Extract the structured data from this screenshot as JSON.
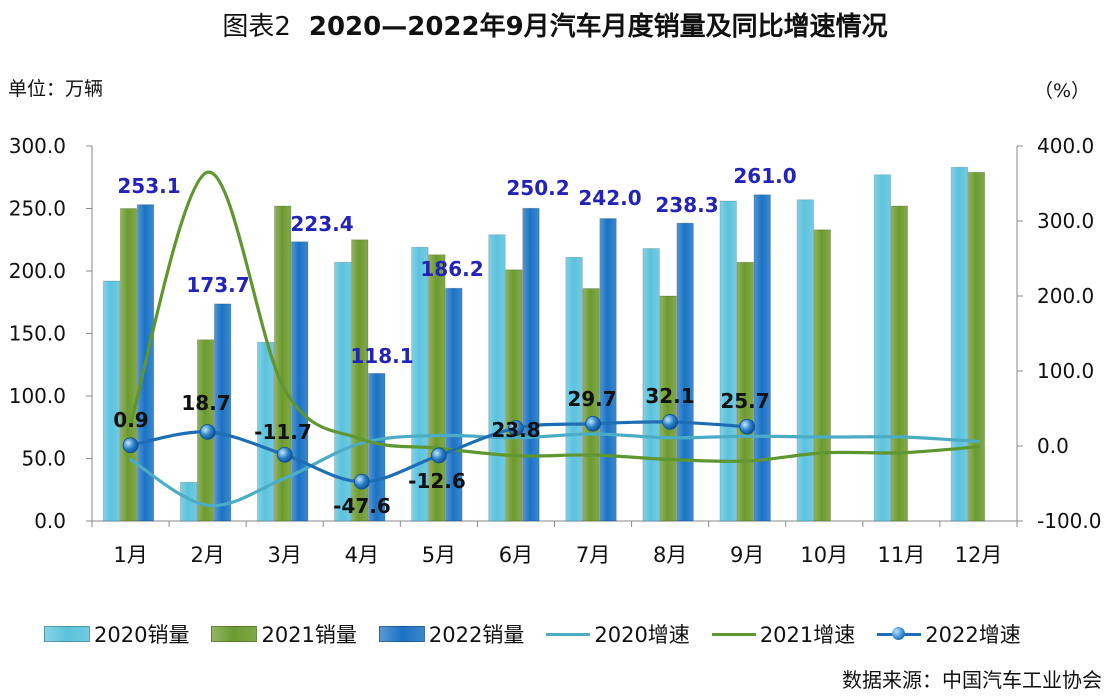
{
  "title_prefix": "图表2",
  "title_main": "2020—2022年9月汽车月度销量及同比增速情况",
  "left_axis_unit": "单位：万辆",
  "right_axis_unit": "（%）",
  "source": "数据来源：中国汽车工业协会",
  "colors": {
    "s2020_bar": "#5bc2dd",
    "s2021_bar": "#6c9a2e",
    "s2022_bar": "#1b73c4",
    "s2020_line": "#4bacc6",
    "s2021_line": "#5e9630",
    "s2022_line": "#1f6eb5",
    "label_2022": "#2323b8"
  },
  "legend": [
    {
      "label": "2020销量",
      "kind": "bar",
      "color": "#5bc2dd"
    },
    {
      "label": "2021销量",
      "kind": "bar",
      "color": "#6c9a2e"
    },
    {
      "label": "2022销量",
      "kind": "bar",
      "color": "#1b73c4"
    },
    {
      "label": "2020增速",
      "kind": "line",
      "color": "#4bacc6"
    },
    {
      "label": "2021增速",
      "kind": "line",
      "color": "#5e9630"
    },
    {
      "label": "2022增速",
      "kind": "line-dot",
      "color": "#1f6eb5"
    }
  ],
  "chart_data": {
    "type": "bar",
    "categories": [
      "1月",
      "2月",
      "3月",
      "4月",
      "5月",
      "6月",
      "7月",
      "8月",
      "9月",
      "10月",
      "11月",
      "12月"
    ],
    "y_left": {
      "min": 0,
      "max": 300,
      "ticks": [
        "0.0",
        "50.0",
        "100.0",
        "150.0",
        "200.0",
        "250.0",
        "300.0"
      ]
    },
    "y_right": {
      "min": -100,
      "max": 400,
      "ticks": [
        "-100.0",
        "0.0",
        "100.0",
        "200.0",
        "300.0",
        "400.0"
      ]
    },
    "bar_series": [
      {
        "name": "2020销量",
        "values": [
          192,
          31,
          143,
          207,
          219,
          229,
          211,
          218,
          256,
          257,
          277,
          283
        ]
      },
      {
        "name": "2021销量",
        "values": [
          250,
          145,
          252,
          225,
          213,
          201,
          186,
          180,
          207,
          233,
          252,
          279
        ]
      },
      {
        "name": "2022销量",
        "values": [
          253.1,
          173.7,
          223.4,
          118.1,
          186.2,
          250.2,
          242.0,
          238.3,
          261.0,
          null,
          null,
          null
        ]
      }
    ],
    "bar_labels_2022": [
      "253.1",
      "173.7",
      "223.4",
      "118.1",
      "186.2",
      "250.2",
      "242.0",
      "238.3",
      "261.0"
    ],
    "line_series": [
      {
        "name": "2020增速",
        "axis": "right",
        "values": [
          -18,
          -79,
          -43,
          4,
          14,
          11,
          16,
          11,
          13,
          12,
          12,
          6
        ]
      },
      {
        "name": "2021增速",
        "axis": "right",
        "values": [
          30,
          365,
          75,
          9,
          -3,
          -13,
          -12,
          -18,
          -20,
          -9,
          -9,
          -1
        ]
      },
      {
        "name": "2022增速",
        "axis": "right",
        "values": [
          0.9,
          18.7,
          -11.7,
          -47.6,
          -12.6,
          23.8,
          29.7,
          32.1,
          25.7,
          null,
          null,
          null
        ]
      }
    ],
    "line_labels_2022": [
      "0.9",
      "18.7",
      "-11.7",
      "-47.6",
      "-12.6",
      "23.8",
      "29.7",
      "32.1",
      "25.7"
    ]
  }
}
